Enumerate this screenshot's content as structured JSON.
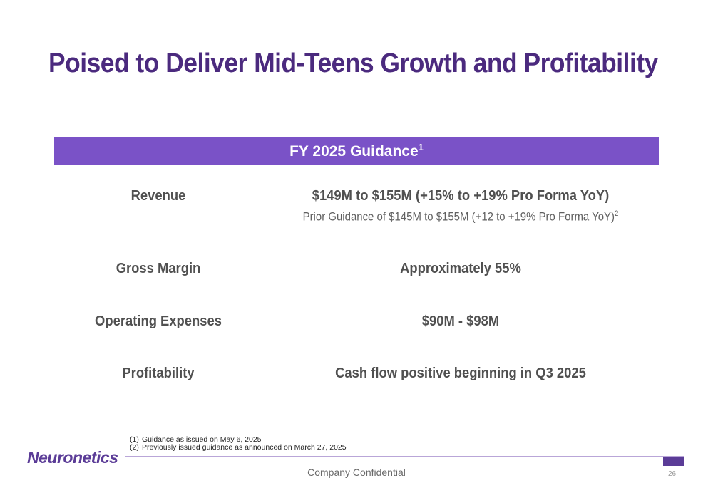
{
  "slide": {
    "title": "Poised to Deliver Mid-Teens Growth and Profitability",
    "banner": {
      "text": "FY 2025 Guidance",
      "superscript": "1",
      "color": "#7a52c7"
    },
    "rows": [
      {
        "label": "Revenue",
        "value": "$149M to $155M (+15% to +19% Pro Forma YoY)",
        "sub": "Prior Guidance of $145M to $155M (+12 to +19% Pro Forma YoY)",
        "sub_superscript": "2"
      },
      {
        "label": "Gross Margin",
        "value": "Approximately 55%"
      },
      {
        "label": "Operating Expenses",
        "value": "$90M - $98M"
      },
      {
        "label": "Profitability",
        "value": "Cash flow positive beginning in Q3 2025"
      }
    ],
    "footnotes": [
      {
        "num": "(1)",
        "text": "Guidance as issued on May 6, 2025"
      },
      {
        "num": "(2)",
        "text": "Previously issued guidance as announced on March 27, 2025"
      }
    ]
  },
  "footer": {
    "logo": "Neuronetics",
    "confidential": "Company Confidential",
    "page_number": "26",
    "brand_color": "#5b3c97"
  }
}
